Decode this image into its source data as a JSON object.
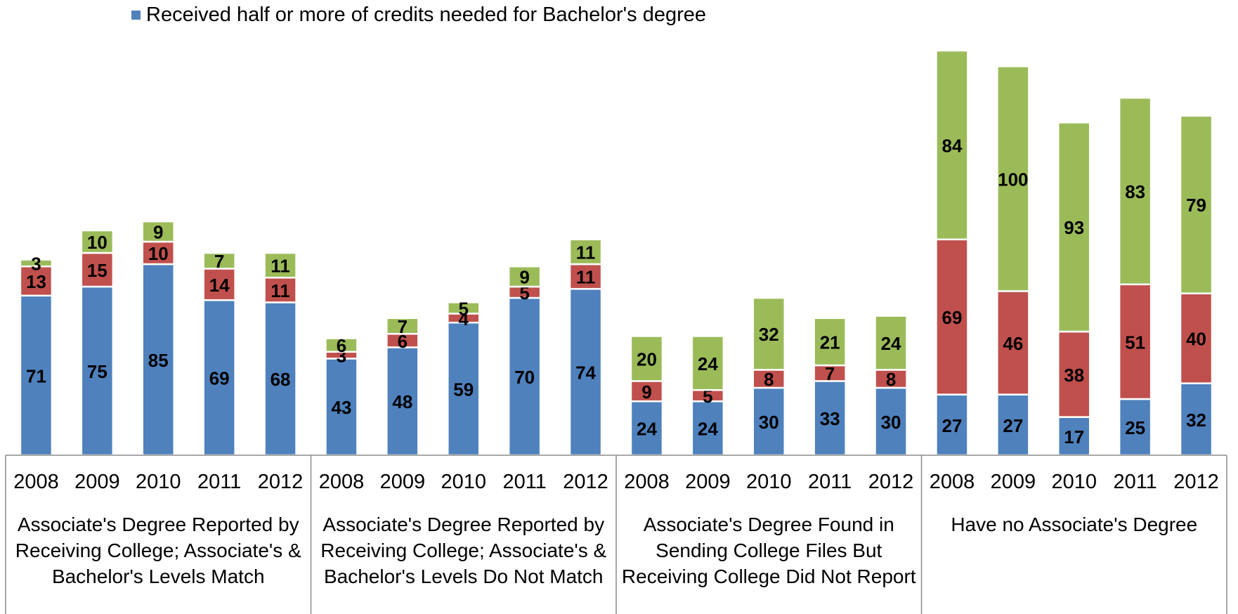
{
  "legend": {
    "label": "Received half or more of credits needed for Bachelor's degree",
    "color": "#4F81BD"
  },
  "colors": {
    "received_half_or_more": "#4F81BD",
    "segment_2": "#C0504D",
    "segment_3": "#9BBB59"
  },
  "groups": [
    "Associate's Degree Reported by Receiving College; Associate's & Bachelor's Levels Match",
    "Associate's Degree Reported by Receiving College; Associate's & Bachelor's Levels Do Not Match",
    "Associate's Degree Found in Sending College Files But Receiving College Did Not Report",
    "Have no Associate's Degree"
  ],
  "chart_data": {
    "type": "bar",
    "stacked": true,
    "legend_position": "top",
    "grid": false,
    "years": [
      "2008",
      "2009",
      "2010",
      "2011",
      "2012"
    ],
    "groups": [
      "Associate's Degree Reported by Receiving College; Associate's & Bachelor's Levels Match",
      "Associate's Degree Reported by Receiving College; Associate's & Bachelor's Levels Do Not Match",
      "Associate's Degree Found in Sending College Files But Receiving College Did Not Report",
      "Have no Associate's Degree"
    ],
    "series": [
      {
        "name": "Received half or more of credits needed for Bachelor's degree",
        "color": "#4F81BD",
        "values": [
          71,
          75,
          85,
          69,
          68,
          43,
          48,
          59,
          70,
          74,
          24,
          24,
          30,
          33,
          30,
          27,
          27,
          17,
          25,
          32
        ]
      },
      {
        "color": "#C0504D",
        "values": [
          13,
          15,
          10,
          14,
          11,
          3,
          6,
          4,
          5,
          11,
          9,
          5,
          8,
          7,
          8,
          69,
          46,
          38,
          51,
          40
        ]
      },
      {
        "color": "#9BBB59",
        "values": [
          3,
          10,
          9,
          7,
          11,
          6,
          7,
          5,
          9,
          11,
          20,
          24,
          32,
          21,
          24,
          84,
          100,
          93,
          83,
          79
        ]
      }
    ]
  }
}
